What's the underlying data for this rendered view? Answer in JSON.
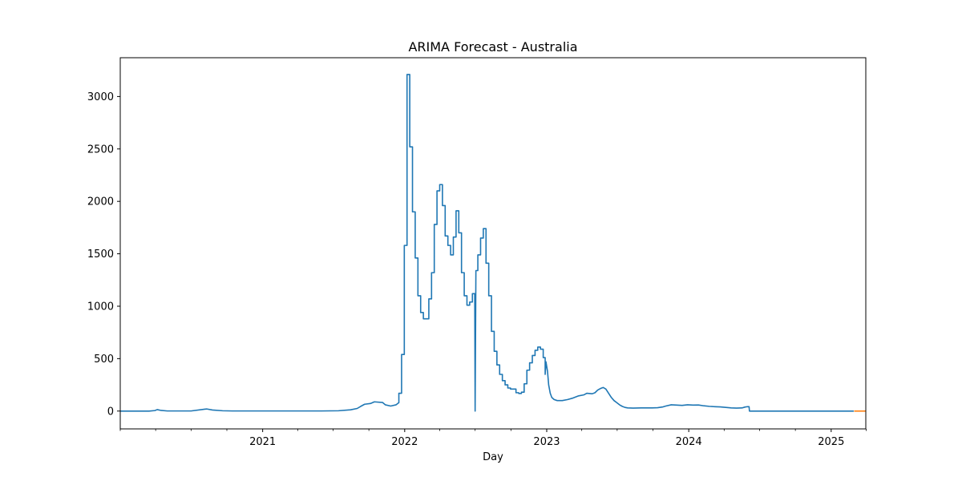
{
  "chart_data": {
    "type": "line",
    "title": "ARIMA Forecast - Australia",
    "xlabel": "Day",
    "ylabel": "",
    "grid": false,
    "legend": "none",
    "xlim": [
      "2020-01-01",
      "2025-03-31"
    ],
    "ylim": [
      -170,
      3370
    ],
    "x_ticks": [
      {
        "date": "2021-01-01",
        "label": "2021"
      },
      {
        "date": "2022-01-01",
        "label": "2022"
      },
      {
        "date": "2023-01-01",
        "label": "2023"
      },
      {
        "date": "2024-01-01",
        "label": "2024"
      },
      {
        "date": "2025-01-01",
        "label": "2025"
      }
    ],
    "x_minor_ticks": [
      "2020-01-01",
      "2020-04-01",
      "2020-07-01",
      "2020-10-01",
      "2021-04-01",
      "2021-07-01",
      "2021-10-01",
      "2022-04-01",
      "2022-07-01",
      "2022-10-01",
      "2023-04-01",
      "2023-07-01",
      "2023-10-01",
      "2024-04-01",
      "2024-07-01",
      "2024-10-01",
      "2025-04-01"
    ],
    "y_ticks": [
      0,
      500,
      1000,
      1500,
      2000,
      2500,
      3000
    ],
    "y_tick_labels": [
      "0",
      "500",
      "1000",
      "1500",
      "2000",
      "2500",
      "3000"
    ],
    "series": [
      {
        "color": "#1f77b4",
        "points": [
          [
            "2020-01-01",
            0
          ],
          [
            "2020-03-15",
            0
          ],
          [
            "2020-03-30",
            5
          ],
          [
            "2020-04-05",
            14
          ],
          [
            "2020-04-15",
            6
          ],
          [
            "2020-05-01",
            1
          ],
          [
            "2020-07-01",
            1
          ],
          [
            "2020-08-01",
            16
          ],
          [
            "2020-08-10",
            20
          ],
          [
            "2020-08-25",
            10
          ],
          [
            "2020-09-20",
            3
          ],
          [
            "2020-10-15",
            1
          ],
          [
            "2021-06-01",
            1
          ],
          [
            "2021-07-15",
            3
          ],
          [
            "2021-08-15",
            12
          ],
          [
            "2021-09-01",
            25
          ],
          [
            "2021-09-10",
            45
          ],
          [
            "2021-09-20",
            65
          ],
          [
            "2021-10-05",
            72
          ],
          [
            "2021-10-15",
            88
          ],
          [
            "2021-11-05",
            82
          ],
          [
            "2021-11-12",
            60
          ],
          [
            "2021-11-26",
            48
          ],
          [
            "2021-12-10",
            60
          ],
          [
            "2021-12-17",
            80
          ],
          [
            "2021-12-17",
            170
          ],
          [
            "2021-12-24",
            170
          ],
          [
            "2021-12-24",
            540
          ],
          [
            "2021-12-31",
            540
          ],
          [
            "2021-12-31",
            1580
          ],
          [
            "2022-01-07",
            1580
          ],
          [
            "2022-01-07",
            3210
          ],
          [
            "2022-01-14",
            3210
          ],
          [
            "2022-01-14",
            2520
          ],
          [
            "2022-01-21",
            2520
          ],
          [
            "2022-01-21",
            1900
          ],
          [
            "2022-01-28",
            1900
          ],
          [
            "2022-01-28",
            1460
          ],
          [
            "2022-02-04",
            1460
          ],
          [
            "2022-02-04",
            1100
          ],
          [
            "2022-02-11",
            1100
          ],
          [
            "2022-02-11",
            940
          ],
          [
            "2022-02-18",
            940
          ],
          [
            "2022-02-18",
            880
          ],
          [
            "2022-03-04",
            880
          ],
          [
            "2022-03-04",
            1070
          ],
          [
            "2022-03-11",
            1070
          ],
          [
            "2022-03-11",
            1320
          ],
          [
            "2022-03-18",
            1320
          ],
          [
            "2022-03-18",
            1780
          ],
          [
            "2022-03-25",
            1780
          ],
          [
            "2022-03-25",
            2100
          ],
          [
            "2022-04-01",
            2100
          ],
          [
            "2022-04-01",
            2160
          ],
          [
            "2022-04-08",
            2160
          ],
          [
            "2022-04-08",
            1960
          ],
          [
            "2022-04-15",
            1960
          ],
          [
            "2022-04-15",
            1670
          ],
          [
            "2022-04-22",
            1670
          ],
          [
            "2022-04-22",
            1580
          ],
          [
            "2022-04-29",
            1580
          ],
          [
            "2022-04-29",
            1490
          ],
          [
            "2022-05-06",
            1490
          ],
          [
            "2022-05-06",
            1660
          ],
          [
            "2022-05-13",
            1660
          ],
          [
            "2022-05-13",
            1910
          ],
          [
            "2022-05-20",
            1910
          ],
          [
            "2022-05-20",
            1700
          ],
          [
            "2022-05-27",
            1700
          ],
          [
            "2022-05-27",
            1320
          ],
          [
            "2022-06-03",
            1320
          ],
          [
            "2022-06-03",
            1100
          ],
          [
            "2022-06-10",
            1100
          ],
          [
            "2022-06-10",
            1010
          ],
          [
            "2022-06-17",
            1010
          ],
          [
            "2022-06-17",
            1040
          ],
          [
            "2022-06-24",
            1040
          ],
          [
            "2022-06-24",
            1120
          ],
          [
            "2022-06-30",
            1120
          ],
          [
            "2022-07-01",
            0
          ],
          [
            "2022-07-03",
            1340
          ],
          [
            "2022-07-08",
            1340
          ],
          [
            "2022-07-08",
            1490
          ],
          [
            "2022-07-15",
            1490
          ],
          [
            "2022-07-15",
            1650
          ],
          [
            "2022-07-22",
            1650
          ],
          [
            "2022-07-22",
            1740
          ],
          [
            "2022-07-29",
            1740
          ],
          [
            "2022-07-29",
            1410
          ],
          [
            "2022-08-05",
            1410
          ],
          [
            "2022-08-05",
            1100
          ],
          [
            "2022-08-12",
            1100
          ],
          [
            "2022-08-12",
            760
          ],
          [
            "2022-08-19",
            760
          ],
          [
            "2022-08-19",
            570
          ],
          [
            "2022-08-26",
            570
          ],
          [
            "2022-08-26",
            440
          ],
          [
            "2022-09-02",
            440
          ],
          [
            "2022-09-02",
            350
          ],
          [
            "2022-09-09",
            350
          ],
          [
            "2022-09-09",
            290
          ],
          [
            "2022-09-16",
            290
          ],
          [
            "2022-09-16",
            250
          ],
          [
            "2022-09-23",
            250
          ],
          [
            "2022-09-23",
            220
          ],
          [
            "2022-09-30",
            220
          ],
          [
            "2022-09-30",
            210
          ],
          [
            "2022-10-14",
            210
          ],
          [
            "2022-10-14",
            175
          ],
          [
            "2022-10-21",
            175
          ],
          [
            "2022-10-21",
            168
          ],
          [
            "2022-10-28",
            168
          ],
          [
            "2022-10-28",
            180
          ],
          [
            "2022-11-04",
            180
          ],
          [
            "2022-11-04",
            260
          ],
          [
            "2022-11-11",
            260
          ],
          [
            "2022-11-11",
            390
          ],
          [
            "2022-11-18",
            390
          ],
          [
            "2022-11-18",
            460
          ],
          [
            "2022-11-25",
            460
          ],
          [
            "2022-11-25",
            530
          ],
          [
            "2022-12-02",
            530
          ],
          [
            "2022-12-02",
            580
          ],
          [
            "2022-12-09",
            580
          ],
          [
            "2022-12-09",
            610
          ],
          [
            "2022-12-16",
            610
          ],
          [
            "2022-12-16",
            590
          ],
          [
            "2022-12-23",
            590
          ],
          [
            "2022-12-23",
            510
          ],
          [
            "2022-12-28",
            510
          ],
          [
            "2022-12-28",
            350
          ],
          [
            "2022-12-30",
            470
          ],
          [
            "2023-01-03",
            380
          ],
          [
            "2023-01-06",
            250
          ],
          [
            "2023-01-10",
            170
          ],
          [
            "2023-01-14",
            130
          ],
          [
            "2023-01-20",
            110
          ],
          [
            "2023-01-28",
            100
          ],
          [
            "2023-02-10",
            100
          ],
          [
            "2023-02-24",
            110
          ],
          [
            "2023-03-10",
            125
          ],
          [
            "2023-03-24",
            145
          ],
          [
            "2023-04-07",
            155
          ],
          [
            "2023-04-14",
            170
          ],
          [
            "2023-04-28",
            165
          ],
          [
            "2023-05-05",
            175
          ],
          [
            "2023-05-12",
            200
          ],
          [
            "2023-05-19",
            215
          ],
          [
            "2023-05-26",
            225
          ],
          [
            "2023-06-02",
            210
          ],
          [
            "2023-06-09",
            170
          ],
          [
            "2023-06-16",
            130
          ],
          [
            "2023-06-23",
            100
          ],
          [
            "2023-06-30",
            80
          ],
          [
            "2023-07-07",
            60
          ],
          [
            "2023-07-14",
            45
          ],
          [
            "2023-07-21",
            35
          ],
          [
            "2023-07-28",
            30
          ],
          [
            "2023-08-11",
            28
          ],
          [
            "2023-09-01",
            30
          ],
          [
            "2023-09-29",
            30
          ],
          [
            "2023-10-13",
            32
          ],
          [
            "2023-10-27",
            40
          ],
          [
            "2023-11-03",
            48
          ],
          [
            "2023-11-17",
            60
          ],
          [
            "2023-12-01",
            57
          ],
          [
            "2023-12-15",
            54
          ],
          [
            "2023-12-29",
            60
          ],
          [
            "2024-01-12",
            57
          ],
          [
            "2024-01-26",
            58
          ],
          [
            "2024-02-09",
            50
          ],
          [
            "2024-02-23",
            45
          ],
          [
            "2024-03-08",
            42
          ],
          [
            "2024-03-22",
            40
          ],
          [
            "2024-04-05",
            35
          ],
          [
            "2024-04-19",
            30
          ],
          [
            "2024-05-03",
            28
          ],
          [
            "2024-05-17",
            30
          ],
          [
            "2024-05-24",
            38
          ],
          [
            "2024-05-31",
            42
          ],
          [
            "2024-06-04",
            42
          ],
          [
            "2024-06-05",
            0
          ],
          [
            "2025-02-28",
            0
          ]
        ]
      },
      {
        "color": "#ff7f0e",
        "points": [
          [
            "2025-03-01",
            0
          ],
          [
            "2025-03-31",
            0
          ]
        ]
      }
    ]
  }
}
